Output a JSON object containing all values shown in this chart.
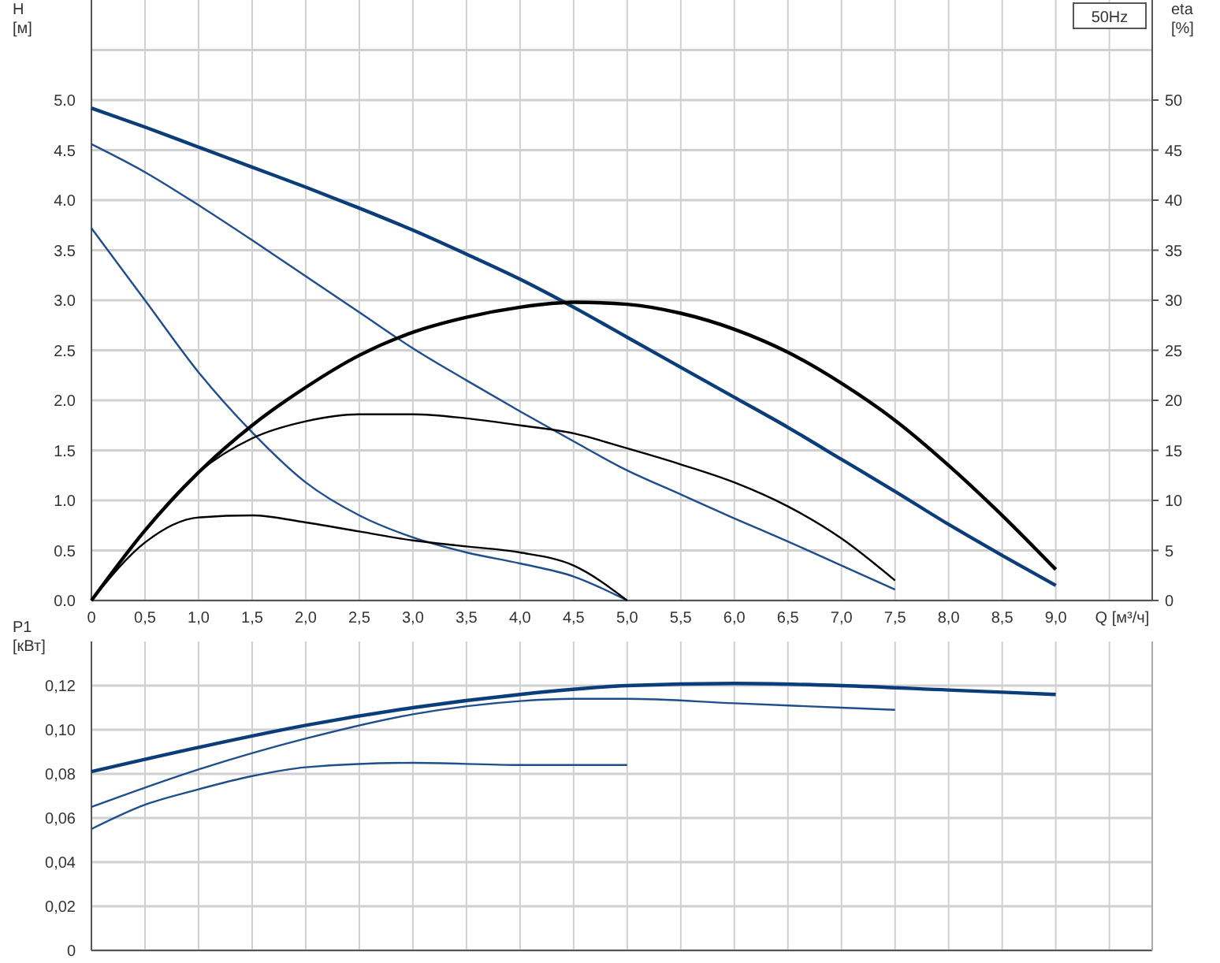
{
  "chart_data": [
    {
      "type": "line",
      "xlabel": "Q [м³/ч]",
      "ylabel": "H\n[м]",
      "y2label": "eta\n[%]",
      "annotations": [
        "50Hz"
      ],
      "grid": true,
      "marker": "none",
      "line_style": "solid",
      "xlim": [
        0,
        9.9
      ],
      "xticks": [
        {
          "value": 0,
          "label": "0"
        },
        {
          "value": 0.5,
          "label": "0,5"
        },
        {
          "value": 1,
          "label": "1,0"
        },
        {
          "value": 1.5,
          "label": "1,5"
        },
        {
          "value": 2,
          "label": "2,0"
        },
        {
          "value": 2.5,
          "label": "2,5"
        },
        {
          "value": 3,
          "label": "3,0"
        },
        {
          "value": 3.5,
          "label": "3,5"
        },
        {
          "value": 4,
          "label": "4,0"
        },
        {
          "value": 4.5,
          "label": "4,5"
        },
        {
          "value": 5,
          "label": "5,0"
        },
        {
          "value": 5.5,
          "label": "5,5"
        },
        {
          "value": 6,
          "label": "6,0"
        },
        {
          "value": 6.5,
          "label": "6,5"
        },
        {
          "value": 7,
          "label": "7,0"
        },
        {
          "value": 7.5,
          "label": "7,5"
        },
        {
          "value": 8,
          "label": "8,0"
        },
        {
          "value": 8.5,
          "label": "8,5"
        },
        {
          "value": 9,
          "label": "9,0"
        },
        {
          "value": 9.5,
          "label": null
        }
      ],
      "ylim": [
        0,
        6
      ],
      "yticks": [
        {
          "value": 0,
          "label": "0.0"
        },
        {
          "value": 0.5,
          "label": "0.5"
        },
        {
          "value": 1,
          "label": "1.0"
        },
        {
          "value": 1.5,
          "label": "1.5"
        },
        {
          "value": 2,
          "label": "2.0"
        },
        {
          "value": 2.5,
          "label": "2.5"
        },
        {
          "value": 3,
          "label": "3.0"
        },
        {
          "value": 3.5,
          "label": "3.5"
        },
        {
          "value": 4,
          "label": "4.0"
        },
        {
          "value": 4.5,
          "label": "4.5"
        },
        {
          "value": 5,
          "label": "5.0"
        },
        {
          "value": 5.5,
          "label": null
        }
      ],
      "y2lim": [
        0,
        60
      ],
      "y2ticks": [
        0,
        5,
        10,
        15,
        20,
        25,
        30,
        35,
        40,
        45,
        50
      ],
      "series": [
        {
          "color": "#0b3d7a",
          "x": [
            0,
            0.5,
            1,
            1.5,
            2,
            2.5,
            3,
            3.5,
            4,
            4.5,
            5,
            5.5,
            6,
            6.5,
            7,
            7.5,
            8,
            8.5,
            9
          ],
          "values": [
            4.92,
            4.73,
            4.53,
            4.33,
            4.13,
            3.92,
            3.7,
            3.46,
            3.21,
            2.93,
            2.63,
            2.33,
            2.03,
            1.73,
            1.41,
            1.09,
            0.76,
            0.45,
            0.15
          ]
        },
        {
          "color": "#1f4e8c",
          "x": [
            0,
            0.5,
            1,
            1.5,
            2,
            2.5,
            3,
            3.5,
            4,
            4.5,
            5,
            5.5,
            6,
            6.5,
            7,
            7.5
          ],
          "values": [
            4.56,
            4.28,
            3.95,
            3.6,
            3.24,
            2.88,
            2.52,
            2.2,
            1.89,
            1.59,
            1.3,
            1.06,
            0.82,
            0.59,
            0.35,
            0.11
          ]
        },
        {
          "color": "#1f4e8c",
          "x": [
            0,
            0.5,
            1,
            1.5,
            2,
            2.5,
            3,
            3.5,
            4,
            4.5,
            5
          ],
          "values": [
            3.72,
            3.0,
            2.28,
            1.68,
            1.18,
            0.85,
            0.63,
            0.48,
            0.37,
            0.24,
            0.0
          ]
        },
        {
          "color": "#000000",
          "axis": "y2",
          "x": [
            0,
            0.5,
            1,
            1.5,
            2,
            2.5,
            3,
            3.5,
            4,
            4.5,
            5,
            5.5,
            6,
            6.5,
            7,
            7.5,
            8,
            8.5,
            9
          ],
          "values": [
            0,
            7,
            12.8,
            17.5,
            21.3,
            24.5,
            26.8,
            28.3,
            29.3,
            29.8,
            29.6,
            28.7,
            27.1,
            24.8,
            21.7,
            18,
            13.5,
            8.5,
            3.1
          ]
        },
        {
          "color": "#000000",
          "axis": "y2",
          "x": [
            0,
            0.5,
            1,
            1.5,
            2,
            2.5,
            3,
            3.5,
            4,
            4.5,
            5,
            5.5,
            6,
            6.5,
            7,
            7.5
          ],
          "values": [
            0,
            7,
            12.8,
            16.2,
            17.9,
            18.6,
            18.6,
            18.2,
            17.5,
            16.7,
            15.2,
            13.6,
            11.8,
            9.4,
            6.2,
            2.0
          ]
        },
        {
          "color": "#000000",
          "axis": "y2",
          "x": [
            0,
            0.5,
            1,
            1.5,
            2,
            2.5,
            3,
            3.5,
            4,
            4.5,
            5
          ],
          "values": [
            0,
            5.8,
            8.3,
            8.5,
            7.8,
            6.9,
            6.0,
            5.4,
            4.8,
            3.5,
            0
          ]
        }
      ]
    },
    {
      "type": "line",
      "ylabel": "P1\n[кВт]",
      "grid": true,
      "marker": "none",
      "line_style": "solid",
      "tick_labels": "y",
      "xlim": [
        0,
        9.9
      ],
      "xticks": [
        0,
        0.5,
        1,
        1.5,
        2,
        2.5,
        3,
        3.5,
        4,
        4.5,
        5,
        5.5,
        6,
        6.5,
        7,
        7.5,
        8,
        8.5,
        9,
        9.5
      ],
      "ylim": [
        0,
        0.14
      ],
      "yticks": [
        {
          "value": 0,
          "label": "0"
        },
        {
          "value": 0.02,
          "label": "0,02"
        },
        {
          "value": 0.04,
          "label": "0,04"
        },
        {
          "value": 0.06,
          "label": "0,06"
        },
        {
          "value": 0.08,
          "label": "0,08"
        },
        {
          "value": 0.1,
          "label": "0,10"
        },
        {
          "value": 0.12,
          "label": "0,12"
        }
      ],
      "series": [
        {
          "color": "#0b3d7a",
          "x": [
            0,
            1,
            2,
            3,
            4,
            5,
            6,
            7,
            8,
            9
          ],
          "values": [
            0.081,
            0.092,
            0.102,
            0.11,
            0.116,
            0.12,
            0.121,
            0.12,
            0.118,
            0.116
          ]
        },
        {
          "color": "#1f4e8c",
          "x": [
            0,
            1,
            2,
            3,
            4,
            4.5,
            5,
            6,
            7,
            7.5
          ],
          "values": [
            0.065,
            0.082,
            0.096,
            0.107,
            0.113,
            0.114,
            0.114,
            0.112,
            0.11,
            0.109
          ]
        },
        {
          "color": "#1f4e8c",
          "x": [
            0,
            0.5,
            1,
            1.5,
            2,
            3,
            4,
            5
          ],
          "values": [
            0.055,
            0.066,
            0.073,
            0.079,
            0.083,
            0.085,
            0.084,
            0.084
          ]
        }
      ]
    }
  ]
}
